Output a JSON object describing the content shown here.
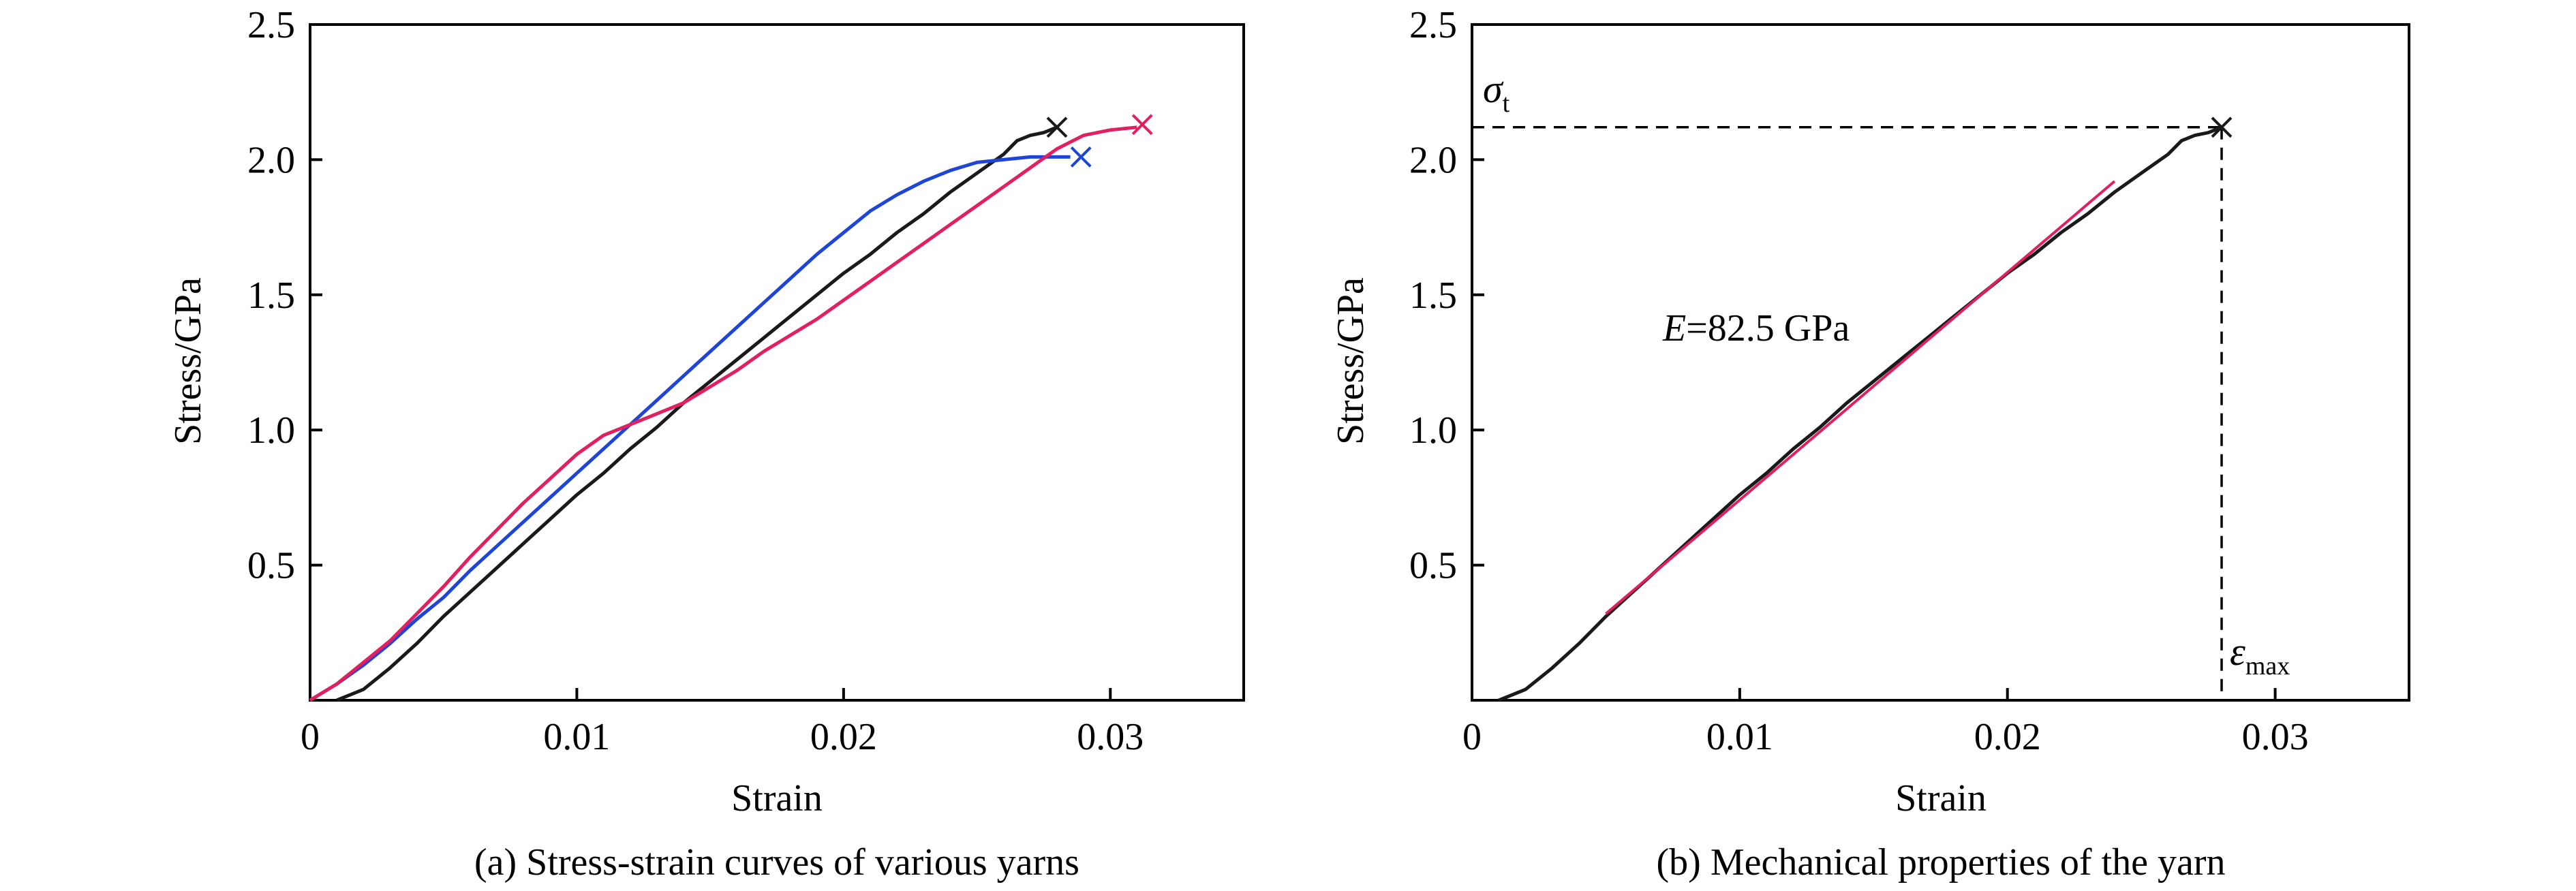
{
  "chart_data": [
    {
      "type": "line",
      "caption": "(a) Stress-strain curves of various yarns",
      "xlabel": "Strain",
      "ylabel": "Stress/GPa",
      "xlim": [
        0,
        0.035
      ],
      "ylim": [
        0,
        2.5
      ],
      "x_ticks": [
        0,
        0.01,
        0.02,
        0.03
      ],
      "x_tick_labels": [
        "0",
        "0.01",
        "0.02",
        "0.03"
      ],
      "y_ticks": [
        0.5,
        1.0,
        1.5,
        2.0,
        2.5
      ],
      "y_tick_labels": [
        "0.5",
        "1.0",
        "1.5",
        "2.0",
        "2.5"
      ],
      "grid": false,
      "series": [
        {
          "color": "#1a1a1a",
          "x": [
            0.001,
            0.002,
            0.003,
            0.004,
            0.005,
            0.006,
            0.007,
            0.008,
            0.009,
            0.01,
            0.011,
            0.012,
            0.013,
            0.014,
            0.015,
            0.016,
            0.017,
            0.018,
            0.019,
            0.02,
            0.021,
            0.022,
            0.023,
            0.024,
            0.025,
            0.026,
            0.0265,
            0.027,
            0.0275,
            0.028
          ],
          "y": [
            0.0,
            0.04,
            0.12,
            0.21,
            0.31,
            0.4,
            0.49,
            0.58,
            0.67,
            0.76,
            0.84,
            0.93,
            1.01,
            1.1,
            1.18,
            1.26,
            1.34,
            1.42,
            1.5,
            1.58,
            1.65,
            1.73,
            1.8,
            1.88,
            1.95,
            2.02,
            2.07,
            2.09,
            2.1,
            2.12
          ],
          "end_marker": {
            "x": 0.028,
            "y": 2.12
          }
        },
        {
          "color": "#1f45d6",
          "x": [
            0.0,
            0.001,
            0.002,
            0.003,
            0.004,
            0.005,
            0.006,
            0.007,
            0.008,
            0.009,
            0.01,
            0.011,
            0.012,
            0.013,
            0.014,
            0.015,
            0.016,
            0.017,
            0.018,
            0.019,
            0.02,
            0.021,
            0.022,
            0.023,
            0.024,
            0.025,
            0.026,
            0.027,
            0.028,
            0.0285
          ],
          "y": [
            0.0,
            0.06,
            0.13,
            0.21,
            0.3,
            0.38,
            0.48,
            0.57,
            0.66,
            0.75,
            0.84,
            0.93,
            1.02,
            1.11,
            1.2,
            1.29,
            1.38,
            1.47,
            1.56,
            1.65,
            1.73,
            1.81,
            1.87,
            1.92,
            1.96,
            1.99,
            2.0,
            2.01,
            2.01,
            2.01
          ],
          "end_marker": {
            "x": 0.0289,
            "y": 2.01
          }
        },
        {
          "color": "#e0205f",
          "x": [
            0.0,
            0.001,
            0.002,
            0.003,
            0.004,
            0.005,
            0.006,
            0.007,
            0.008,
            0.009,
            0.01,
            0.011,
            0.012,
            0.013,
            0.014,
            0.015,
            0.016,
            0.017,
            0.018,
            0.019,
            0.02,
            0.021,
            0.022,
            0.023,
            0.024,
            0.025,
            0.026,
            0.027,
            0.028,
            0.029,
            0.03,
            0.031
          ],
          "y": [
            0.0,
            0.06,
            0.14,
            0.22,
            0.32,
            0.42,
            0.53,
            0.63,
            0.73,
            0.82,
            0.91,
            0.98,
            1.02,
            1.06,
            1.1,
            1.16,
            1.22,
            1.29,
            1.35,
            1.41,
            1.48,
            1.55,
            1.62,
            1.69,
            1.76,
            1.83,
            1.9,
            1.97,
            2.04,
            2.09,
            2.11,
            2.12
          ],
          "end_marker": {
            "x": 0.0312,
            "y": 2.13
          }
        }
      ]
    },
    {
      "type": "line",
      "caption": "(b) Mechanical properties of the yarn",
      "xlabel": "Strain",
      "ylabel": "Stress/GPa",
      "xlim": [
        0,
        0.035
      ],
      "ylim": [
        0,
        2.5
      ],
      "x_ticks": [
        0,
        0.01,
        0.02,
        0.03
      ],
      "x_tick_labels": [
        "0",
        "0.01",
        "0.02",
        "0.03"
      ],
      "y_ticks": [
        0.5,
        1.0,
        1.5,
        2.0,
        2.5
      ],
      "y_tick_labels": [
        "0.5",
        "1.0",
        "1.5",
        "2.0",
        "2.5"
      ],
      "grid": false,
      "series": [
        {
          "color": "#1a1a1a",
          "x": [
            0.001,
            0.002,
            0.003,
            0.004,
            0.005,
            0.006,
            0.007,
            0.008,
            0.009,
            0.01,
            0.011,
            0.012,
            0.013,
            0.014,
            0.015,
            0.016,
            0.017,
            0.018,
            0.019,
            0.02,
            0.021,
            0.022,
            0.023,
            0.024,
            0.025,
            0.026,
            0.0265,
            0.027,
            0.0275,
            0.028
          ],
          "y": [
            0.0,
            0.04,
            0.12,
            0.21,
            0.31,
            0.4,
            0.49,
            0.58,
            0.67,
            0.76,
            0.84,
            0.93,
            1.01,
            1.1,
            1.18,
            1.26,
            1.34,
            1.42,
            1.5,
            1.58,
            1.65,
            1.73,
            1.8,
            1.88,
            1.95,
            2.02,
            2.07,
            2.09,
            2.1,
            2.12
          ],
          "end_marker": {
            "x": 0.028,
            "y": 2.12
          }
        }
      ],
      "fit_line": {
        "color": "#e0205f",
        "x": [
          0.005,
          0.024
        ],
        "y": [
          0.32,
          1.92
        ]
      },
      "reference_lines": {
        "x": 0.028,
        "y": 2.12
      },
      "annotations": {
        "sigma_main": "σ",
        "sigma_sub": "t",
        "eps_main": "ε",
        "eps_sub": "max",
        "modulus_var": "E",
        "modulus_value": "=82.5 GPa"
      }
    }
  ]
}
